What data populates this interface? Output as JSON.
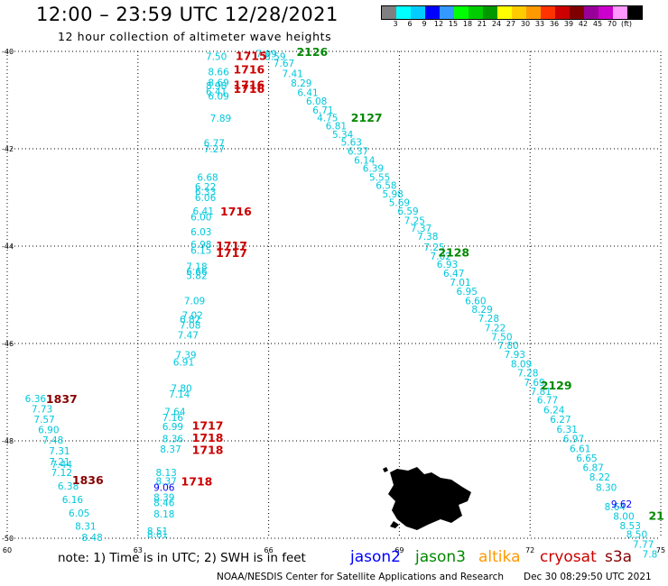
{
  "header": {
    "title": "12:00 – 23:59 UTC 12/28/2021",
    "subtitle": "12 hour collection of altimeter wave heights"
  },
  "colorbar": {
    "colors": [
      "#808080",
      "#00ffff",
      "#00ccff",
      "#0000ff",
      "#3399ff",
      "#00ff00",
      "#00cc00",
      "#009900",
      "#ffff00",
      "#ffcc00",
      "#ff9900",
      "#ff3300",
      "#cc0000",
      "#800000",
      "#990099",
      "#cc00cc",
      "#ff99ff",
      "#000000"
    ],
    "labels": [
      "3",
      "6",
      "9",
      "12",
      "15",
      "18",
      "21",
      "24",
      "27",
      "30",
      "33",
      "36",
      "39",
      "42",
      "45",
      "70",
      "(ft)"
    ]
  },
  "note": "note:  1) Time is in UTC; 2) SWH is in feet",
  "legend": [
    {
      "label": "jason2",
      "color": "#0000ff"
    },
    {
      "label": "jason3",
      "color": "#008800"
    },
    {
      "label": "altika",
      "color": "#ff9900"
    },
    {
      "label": "cryosat",
      "color": "#cc0000"
    },
    {
      "label": "s3a",
      "color": "#880000"
    }
  ],
  "footer": "NOAA/NESDIS Center for Satellite Applications and Research",
  "footer_date": "Dec 30 08:29:50 UTC 2021",
  "chart_data": {
    "type": "scatter",
    "title": "12:00 – 23:59 UTC 12/28/2021",
    "subtitle": "12 hour collection of altimeter wave heights",
    "xlim": [
      60,
      75
    ],
    "ylim": [
      -50,
      -40
    ],
    "x_ticks": [
      "60",
      "63",
      "66",
      "69",
      "72",
      "75"
    ],
    "y_ticks": [
      "-40",
      "-42",
      "-44",
      "-46",
      "-48",
      "-50"
    ],
    "grid": true,
    "series": [
      {
        "name": "jason3 track A",
        "color": "#00c8dc",
        "points": [
          [
            65.95,
            -40.05,
            "7.99"
          ],
          [
            66.15,
            -40.1,
            "8.59"
          ],
          [
            66.35,
            -40.24,
            "7.67"
          ],
          [
            66.55,
            -40.45,
            "7.41"
          ],
          [
            66.75,
            -40.65,
            "8.29"
          ],
          [
            66.9,
            -40.84,
            "6.41"
          ],
          [
            67.1,
            -41.02,
            "6.08"
          ],
          [
            67.25,
            -41.2,
            "6.71"
          ],
          [
            67.35,
            -41.36,
            "4.75"
          ],
          [
            67.55,
            -41.53,
            "6.81"
          ],
          [
            67.7,
            -41.7,
            "5.34"
          ],
          [
            67.9,
            -41.86,
            "5.63"
          ],
          [
            68.05,
            -42.05,
            "6.37"
          ],
          [
            68.2,
            -42.23,
            "6.14"
          ],
          [
            68.4,
            -42.4,
            "6.39"
          ],
          [
            68.55,
            -42.58,
            "5.55"
          ],
          [
            68.7,
            -42.75,
            "6.58"
          ],
          [
            68.85,
            -42.93,
            "5.98"
          ],
          [
            69,
            -43.1,
            "5.69"
          ],
          [
            69.2,
            -43.28,
            "6.59"
          ],
          [
            69.35,
            -43.47,
            "7.25"
          ],
          [
            69.5,
            -43.63,
            "7.37"
          ],
          [
            69.65,
            -43.8,
            "7.38"
          ],
          [
            69.8,
            -44.02,
            "7.25"
          ],
          [
            69.95,
            -44.2,
            "7.02"
          ],
          [
            70.1,
            -44.37,
            "6.93"
          ],
          [
            70.25,
            -44.56,
            "6.47"
          ],
          [
            70.4,
            -44.74,
            "7.01"
          ],
          [
            70.55,
            -44.93,
            "6.95"
          ],
          [
            70.75,
            -45.12,
            "6.60"
          ],
          [
            70.9,
            -45.3,
            "8.29"
          ],
          [
            71.05,
            -45.48,
            "7.28"
          ],
          [
            71.2,
            -45.68,
            "7.22"
          ],
          [
            71.35,
            -45.86,
            "7.50"
          ],
          [
            71.5,
            -46.04,
            "7.80"
          ],
          [
            71.65,
            -46.22,
            "7.93"
          ],
          [
            71.8,
            -46.42,
            "8.09"
          ],
          [
            71.95,
            -46.6,
            "7.28"
          ],
          [
            72.1,
            -46.8,
            "7.69"
          ],
          [
            72.25,
            -46.98,
            "7.81"
          ],
          [
            72.4,
            -47.16,
            "6.77"
          ],
          [
            72.55,
            -47.36,
            "6.24"
          ],
          [
            72.7,
            -47.56,
            "6.27"
          ],
          [
            72.85,
            -47.76,
            "6.31"
          ],
          [
            73,
            -47.95,
            "6.97"
          ],
          [
            73.15,
            -48.16,
            "6.61"
          ],
          [
            73.3,
            -48.35,
            "6.65"
          ],
          [
            73.45,
            -48.55,
            "6.87"
          ],
          [
            73.6,
            -48.74,
            "8.22"
          ],
          [
            73.75,
            -48.95,
            "8.30"
          ],
          [
            73.95,
            -49.35,
            "8.64"
          ],
          [
            74.15,
            -49.55,
            "8.00"
          ],
          [
            74.3,
            -49.74,
            "8.53"
          ],
          [
            74.45,
            -49.92,
            "8.50"
          ],
          [
            74.6,
            -50.12,
            "7.77"
          ],
          [
            74.75,
            -50.32,
            "7.8"
          ]
        ]
      },
      {
        "name": "jason3 track B",
        "color": "#00c8dc",
        "points": [
          [
            64.8,
            -40.1,
            "7.50"
          ],
          [
            64.85,
            -40.42,
            "8.66"
          ],
          [
            64.85,
            -40.64,
            "8.69"
          ],
          [
            64.8,
            -40.7,
            "8.98"
          ],
          [
            64.8,
            -40.82,
            "6.41"
          ],
          [
            64.85,
            -40.92,
            "6.09"
          ],
          [
            64.9,
            -41.37,
            "7.89"
          ],
          [
            64.75,
            -41.88,
            "6.77"
          ],
          [
            64.75,
            -42.0,
            "7.27"
          ],
          [
            64.6,
            -42.58,
            "6.68"
          ],
          [
            64.55,
            -42.78,
            "6.22"
          ],
          [
            64.55,
            -42.88,
            "6.33"
          ],
          [
            64.55,
            -43.0,
            "6.06"
          ],
          [
            64.5,
            -43.28,
            "6.41"
          ],
          [
            64.45,
            -43.4,
            "6.00"
          ],
          [
            64.45,
            -43.7,
            "6.03"
          ],
          [
            64.45,
            -43.96,
            "6.98"
          ],
          [
            64.45,
            -44.08,
            "6.15"
          ],
          [
            64.35,
            -44.42,
            "7.18"
          ],
          [
            64.35,
            -44.52,
            "6.66"
          ],
          [
            64.35,
            -44.6,
            "5.82"
          ],
          [
            64.3,
            -45.12,
            "7.09"
          ],
          [
            64.25,
            -45.42,
            "7.02"
          ],
          [
            64.2,
            -45.5,
            "6.82"
          ],
          [
            64.2,
            -45.62,
            "7.08"
          ],
          [
            64.15,
            -45.82,
            "7.47"
          ],
          [
            64.1,
            -46.23,
            "7.39"
          ],
          [
            64.05,
            -46.38,
            "6.91"
          ],
          [
            64.0,
            -46.92,
            "7.80"
          ],
          [
            63.95,
            -47.04,
            "7.14"
          ],
          [
            63.85,
            -47.4,
            "7.64"
          ],
          [
            63.8,
            -47.52,
            "7.16"
          ],
          [
            63.8,
            -47.7,
            "6.99"
          ],
          [
            63.8,
            -47.95,
            "8.36"
          ],
          [
            63.75,
            -48.17,
            "8.37"
          ],
          [
            63.65,
            -48.65,
            "8.13"
          ],
          [
            63.65,
            -48.82,
            "8.37"
          ],
          [
            63.6,
            -49.16,
            "8.39"
          ],
          [
            63.6,
            -49.27,
            "8.46"
          ],
          [
            63.6,
            -49.5,
            "8.18"
          ],
          [
            63.45,
            -49.85,
            "8.51"
          ],
          [
            63.45,
            -49.92,
            "8.61"
          ]
        ]
      },
      {
        "name": "jason3 track C",
        "color": "#00c8dc",
        "points": [
          [
            60.65,
            -47.13,
            "6.36"
          ],
          [
            60.8,
            -47.34,
            "7.73"
          ],
          [
            60.85,
            -47.56,
            "7.57"
          ],
          [
            60.95,
            -47.77,
            "6.90"
          ],
          [
            61.05,
            -47.98,
            "7.48"
          ],
          [
            61.2,
            -48.2,
            "7.31"
          ],
          [
            61.2,
            -48.43,
            "7.21"
          ],
          [
            61.25,
            -48.48,
            "7.44"
          ],
          [
            61.25,
            -48.65,
            "7.12"
          ],
          [
            61.4,
            -48.93,
            "6.38"
          ],
          [
            61.5,
            -49.2,
            "6.16"
          ],
          [
            61.65,
            -49.48,
            "6.05"
          ],
          [
            61.8,
            -49.75,
            "8.31"
          ],
          [
            61.95,
            -49.98,
            "8.48"
          ]
        ]
      },
      {
        "name": "jason2",
        "color": "#0000ff",
        "points": [
          [
            63.6,
            -48.95,
            "9.06"
          ],
          [
            74.1,
            -49.3,
            "9.62"
          ]
        ]
      }
    ],
    "annotations": [
      {
        "text": "2126",
        "x": 67.0,
        "y": -40.0,
        "color": "#008800"
      },
      {
        "text": "2127",
        "x": 68.25,
        "y": -41.35,
        "color": "#008800"
      },
      {
        "text": "2128",
        "x": 70.25,
        "y": -44.12,
        "color": "#008800"
      },
      {
        "text": "2129",
        "x": 72.6,
        "y": -46.85,
        "color": "#008800"
      },
      {
        "text": "21",
        "x": 74.9,
        "y": -49.53,
        "color": "#008800"
      },
      {
        "text": "1715",
        "x": 65.6,
        "y": -40.08,
        "color": "#cc0000"
      },
      {
        "text": "1716",
        "x": 65.55,
        "y": -40.36,
        "color": "#cc0000"
      },
      {
        "text": "1716",
        "x": 65.55,
        "y": -40.68,
        "color": "#cc0000"
      },
      {
        "text": "1716",
        "x": 65.55,
        "y": -40.76,
        "color": "#cc0000"
      },
      {
        "text": "1716",
        "x": 65.25,
        "y": -43.28,
        "color": "#cc0000"
      },
      {
        "text": "1717",
        "x": 65.15,
        "y": -43.98,
        "color": "#cc0000"
      },
      {
        "text": "1717",
        "x": 65.15,
        "y": -44.13,
        "color": "#cc0000"
      },
      {
        "text": "1717",
        "x": 64.6,
        "y": -47.68,
        "color": "#cc0000"
      },
      {
        "text": "1718",
        "x": 64.6,
        "y": -47.93,
        "color": "#cc0000"
      },
      {
        "text": "1718",
        "x": 64.6,
        "y": -48.18,
        "color": "#cc0000"
      },
      {
        "text": "1718",
        "x": 64.35,
        "y": -48.82,
        "color": "#cc0000"
      },
      {
        "text": "1837",
        "x": 61.25,
        "y": -47.13,
        "color": "#880000"
      },
      {
        "text": "1836",
        "x": 61.85,
        "y": -48.8,
        "color": "#880000"
      }
    ]
  }
}
